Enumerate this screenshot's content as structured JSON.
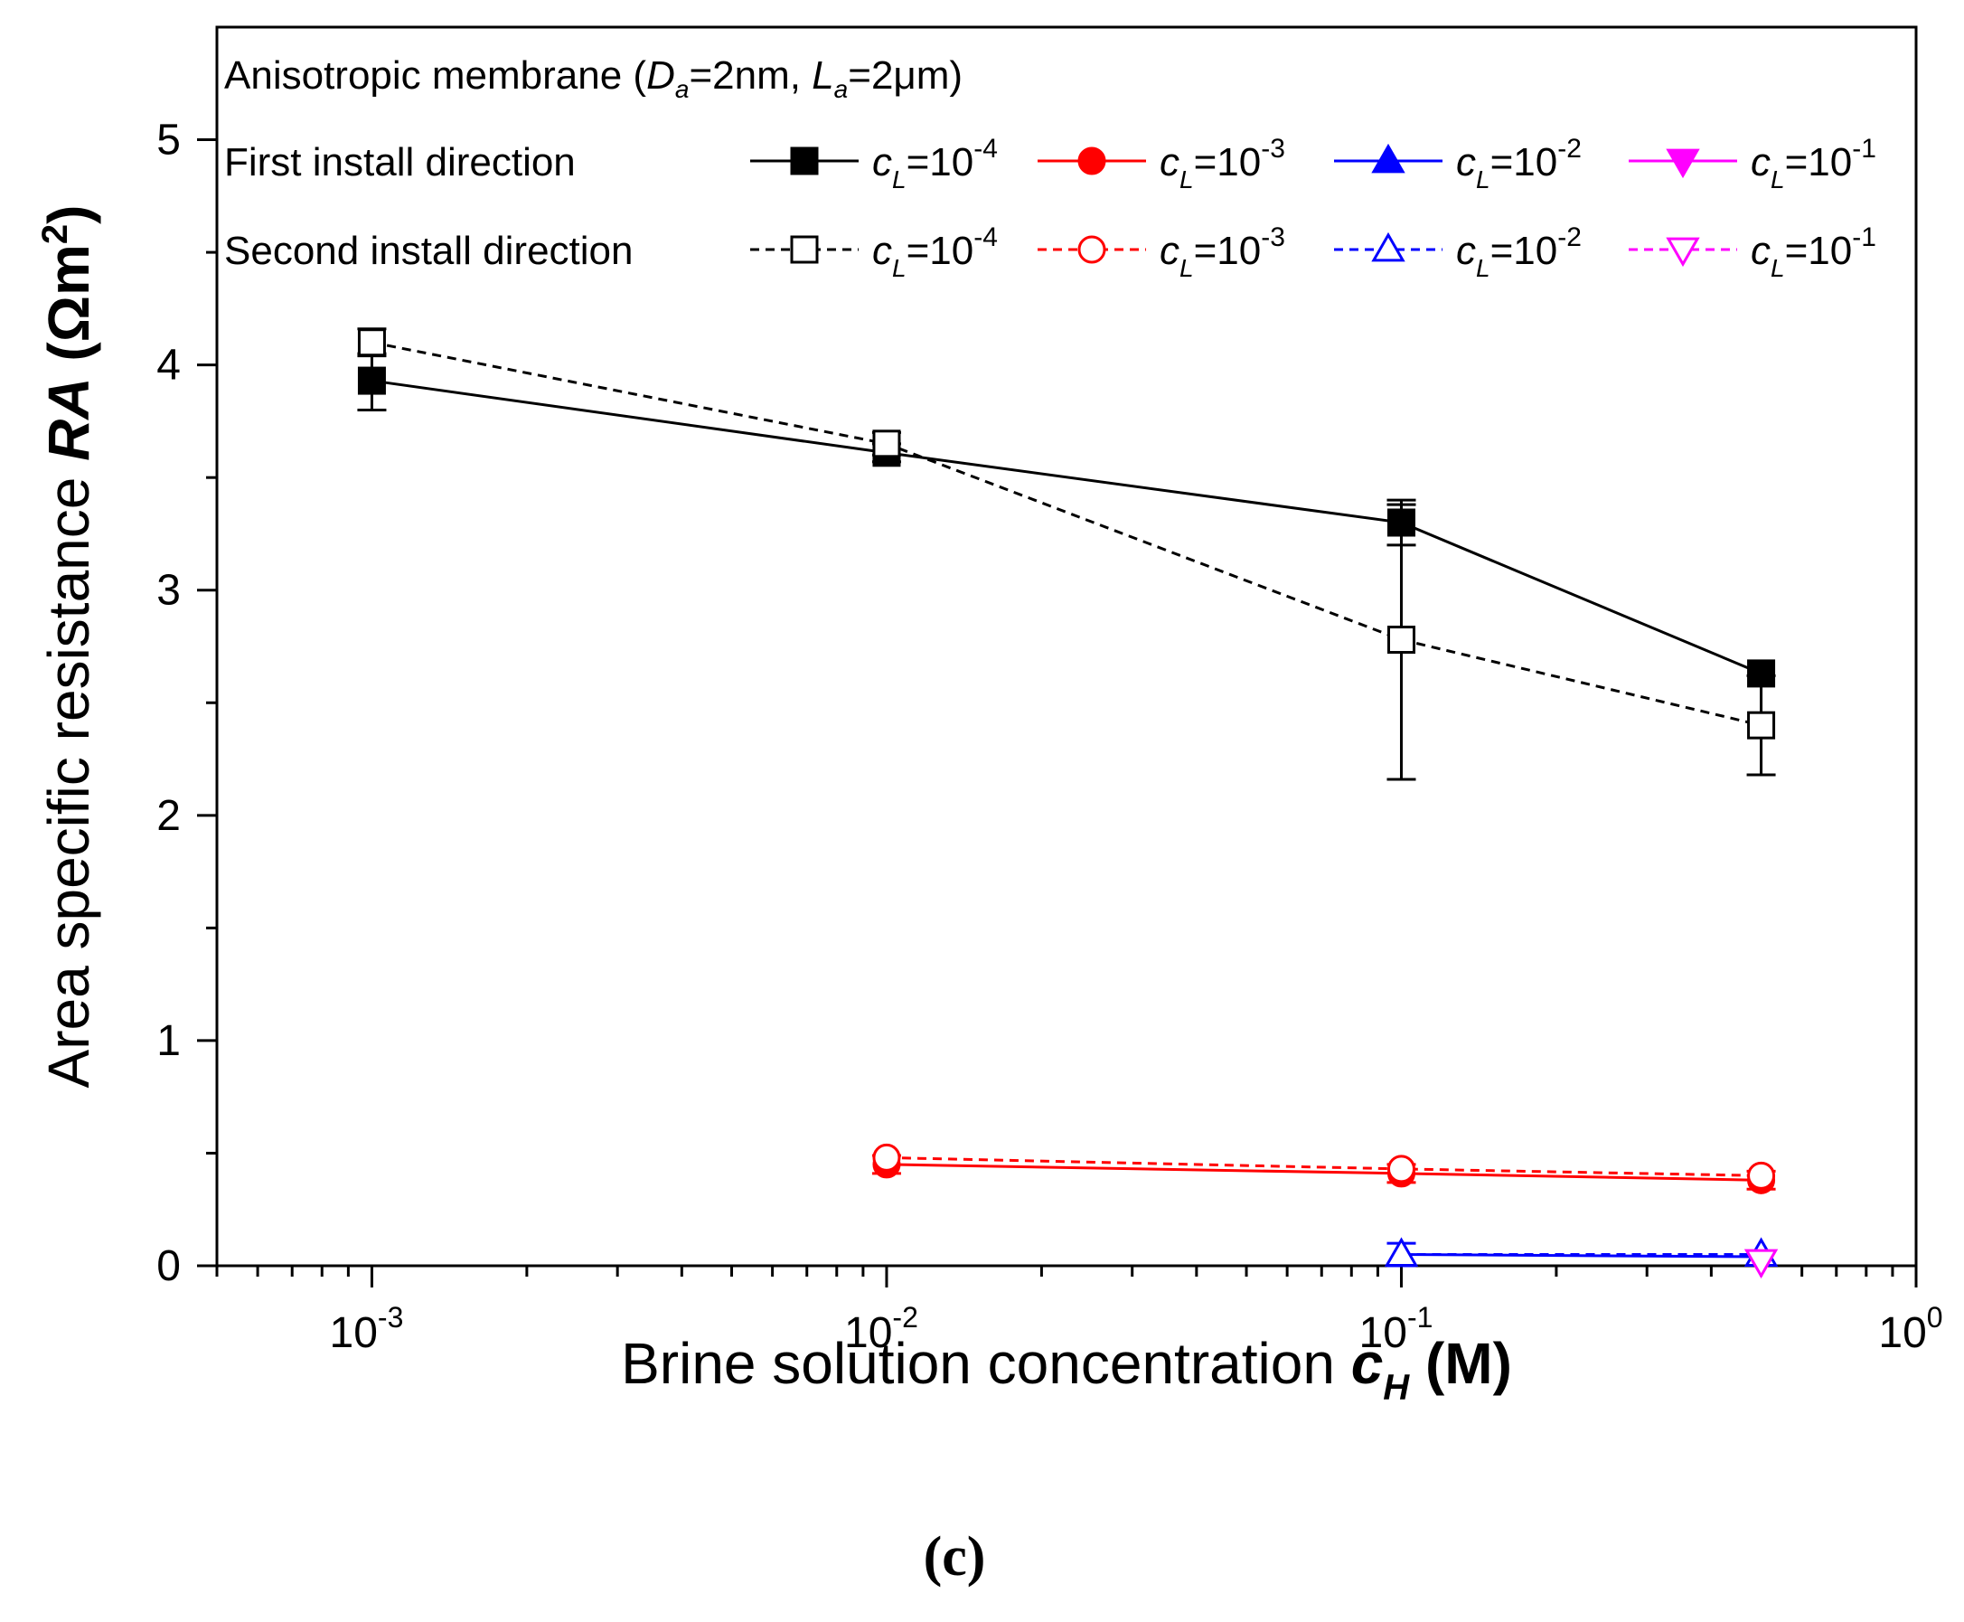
{
  "chart_data": {
    "type": "line",
    "x_scale": "log",
    "xlim": [
      0.0005,
      1
    ],
    "ylim": [
      0,
      5.5
    ],
    "x_ticks": [
      {
        "value": 0.001,
        "base": "10",
        "exp": "-3"
      },
      {
        "value": 0.01,
        "base": "10",
        "exp": "-2"
      },
      {
        "value": 0.1,
        "base": "10",
        "exp": "-1"
      },
      {
        "value": 1,
        "base": "10",
        "exp": "0"
      }
    ],
    "y_ticks": [
      {
        "value": 0,
        "label": "0"
      },
      {
        "value": 1,
        "label": "1"
      },
      {
        "value": 2,
        "label": "2"
      },
      {
        "value": 3,
        "label": "3"
      },
      {
        "value": 4,
        "label": "4"
      },
      {
        "value": 5,
        "label": "5"
      }
    ],
    "xlabel": {
      "prefix": "Brine solution concentration ",
      "sym": "c",
      "sub": "H",
      "suffix": " (M)"
    },
    "ylabel": {
      "prefix": "Area specific resistance ",
      "sym": "RA",
      "unit_open": " (Ωm",
      "unit_sup": "2",
      "unit_close": ")"
    },
    "annotation": {
      "pre": "Anisotropic membrane (",
      "d": "D",
      "d_sub": "a",
      "d_val": "=2nm, ",
      "l": "L",
      "l_sub": "a",
      "l_val": "=2μm)"
    },
    "legend_groups": {
      "first": "First install direction",
      "second": "Second install direction"
    },
    "legend_label_sym": "c",
    "legend_label_sub": "L",
    "legend_label_eq": "=10",
    "series": [
      {
        "name": "First install direction, cL=10^-4",
        "exp": "-4",
        "group": "first",
        "color": "#000000",
        "marker": "square",
        "filled": true,
        "dashed": false,
        "x": [
          0.001,
          0.01,
          0.1,
          0.5
        ],
        "y": [
          3.93,
          3.61,
          3.3,
          2.63
        ],
        "err": [
          [
            3.8,
            4.05
          ],
          [
            3.57,
            3.65
          ],
          [
            3.2,
            3.4
          ],
          null
        ]
      },
      {
        "name": "First install direction, cL=10^-3",
        "exp": "-3",
        "group": "first",
        "color": "#ff0000",
        "marker": "circle",
        "filled": true,
        "dashed": false,
        "x": [
          0.01,
          0.1,
          0.5
        ],
        "y": [
          0.45,
          0.41,
          0.38
        ],
        "err": [
          [
            0.41,
            0.49
          ],
          [
            0.37,
            0.45
          ],
          [
            0.34,
            0.42
          ]
        ]
      },
      {
        "name": "First install direction, cL=10^-2",
        "exp": "-2",
        "group": "first",
        "color": "#0000ff",
        "marker": "triangle-up",
        "filled": true,
        "dashed": false,
        "x": [],
        "y": [],
        "err": []
      },
      {
        "name": "First install direction, cL=10^-1",
        "exp": "-1",
        "group": "first",
        "color": "#ff00ff",
        "marker": "triangle-down",
        "filled": true,
        "dashed": false,
        "x": [],
        "y": [],
        "err": []
      },
      {
        "name": "Second install direction, cL=10^-4",
        "exp": "-4",
        "group": "second",
        "color": "#000000",
        "marker": "square",
        "filled": false,
        "dashed": true,
        "x": [
          0.001,
          0.01,
          0.1,
          0.5
        ],
        "y": [
          4.1,
          3.65,
          2.78,
          2.4
        ],
        "err": [
          [
            4.04,
            4.16
          ],
          [
            3.6,
            3.7
          ],
          [
            2.16,
            3.38
          ],
          [
            2.18,
            2.62
          ]
        ]
      },
      {
        "name": "Second install direction, cL=10^-3",
        "exp": "-3",
        "group": "second",
        "color": "#ff0000",
        "marker": "circle",
        "filled": false,
        "dashed": true,
        "x": [
          0.01,
          0.1,
          0.5
        ],
        "y": [
          0.48,
          0.43,
          0.4
        ],
        "err": [
          null,
          null,
          null
        ]
      },
      {
        "name": "Second install direction, cL=10^-2",
        "exp": "-2",
        "group": "second",
        "color": "#0000ff",
        "marker": "triangle-up",
        "filled": false,
        "dashed": true,
        "x": [
          0.1,
          0.5
        ],
        "y": [
          0.05,
          0.05
        ],
        "err": [
          [
            0.0,
            0.1
          ],
          null
        ]
      },
      {
        "name": "Second install direction, cL=10^-1",
        "exp": "-1",
        "group": "second",
        "color": "#ff00ff",
        "marker": "triangle-down",
        "filled": false,
        "dashed": true,
        "x": [
          0.5
        ],
        "y": [
          0.02
        ],
        "err": [
          null
        ]
      }
    ],
    "blue_first_line": {
      "x": [
        0.1,
        0.5
      ],
      "y": [
        0.05,
        0.04
      ]
    }
  },
  "caption": "(c)"
}
